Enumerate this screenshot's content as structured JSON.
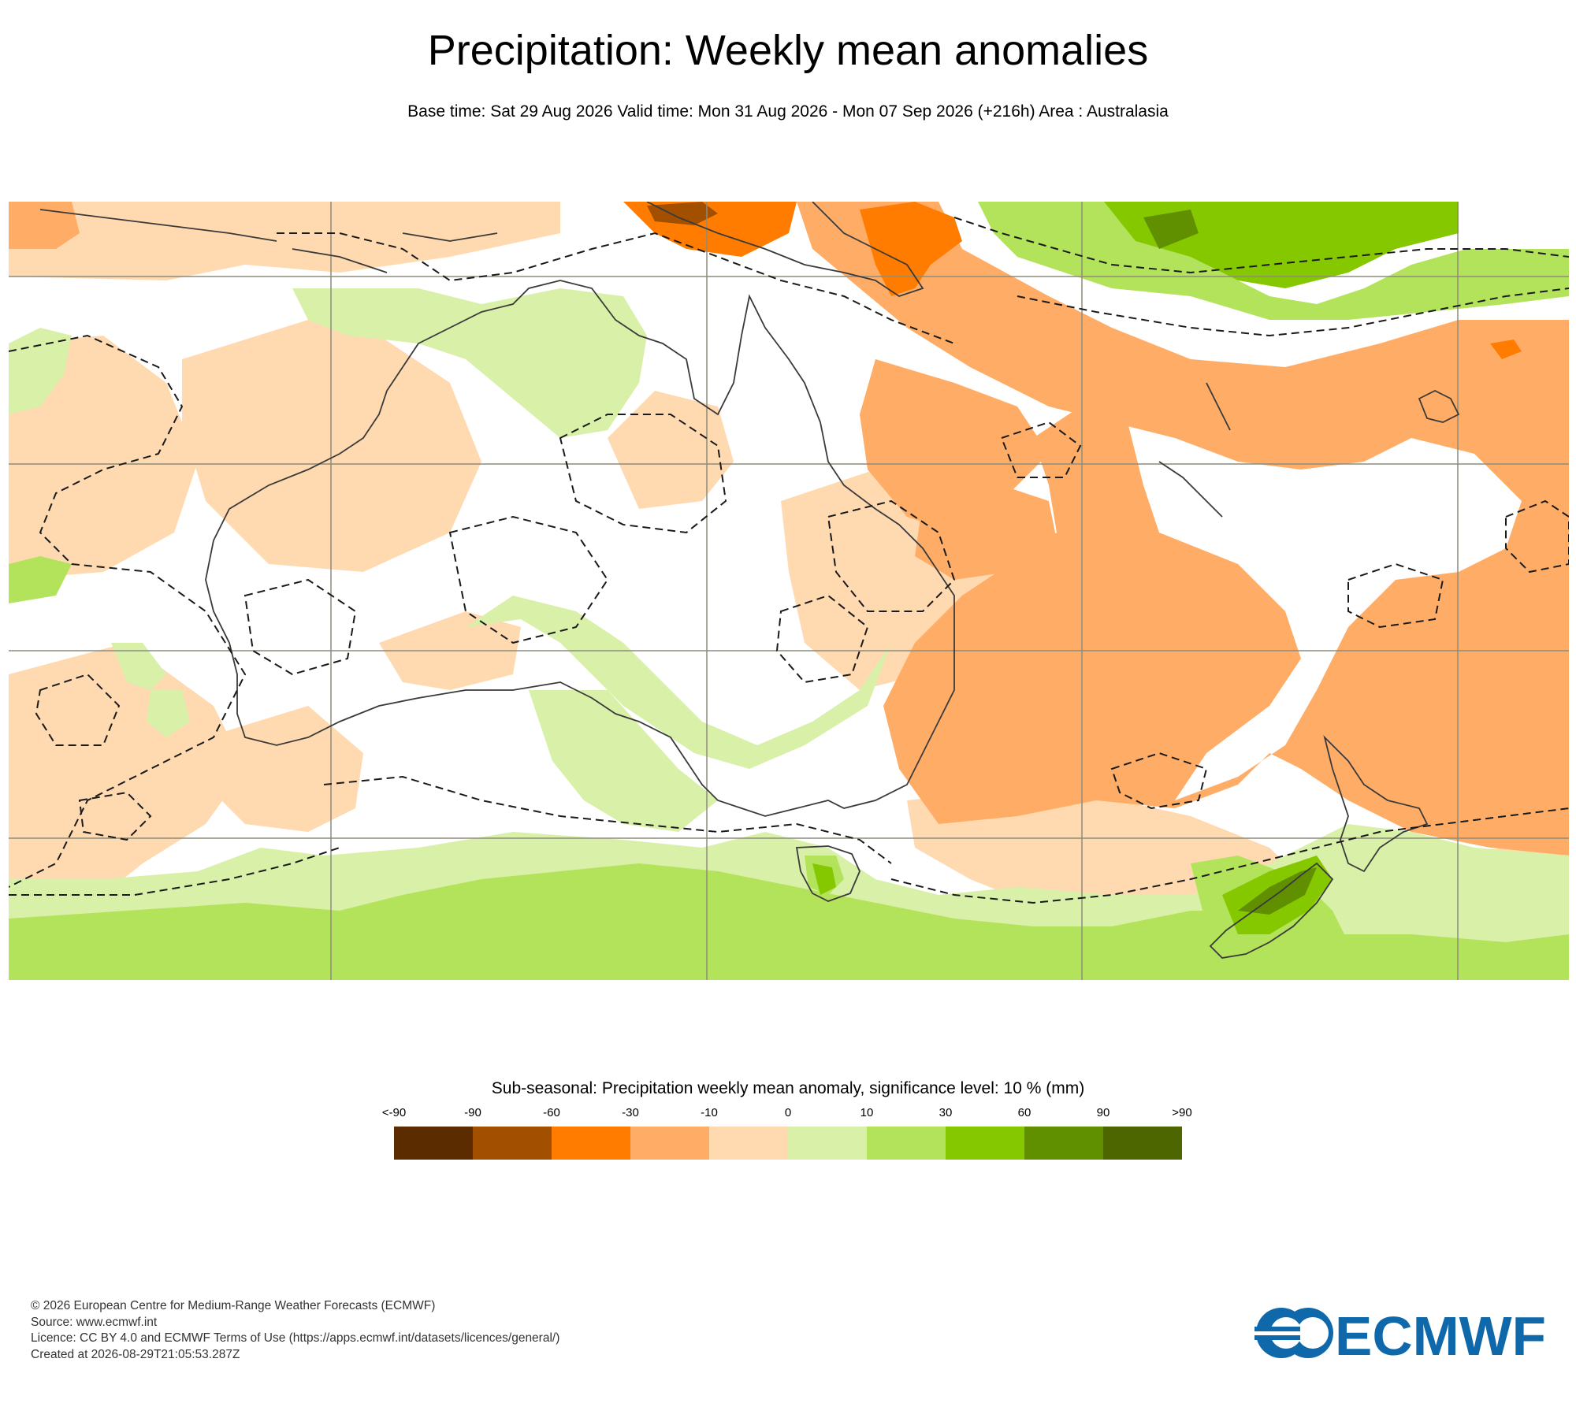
{
  "header": {
    "title": "Precipitation: Weekly mean anomalies",
    "subtitle": "Base time: Sat 29 Aug 2026 Valid time: Mon 31 Aug 2026 - Mon 07 Sep 2026 (+216h) Area : Australasia"
  },
  "map": {
    "region": "Australasia",
    "colors": {
      "neutral": "#ffffff",
      "coast": "#3a3a3a",
      "grid": "#8c8c7c",
      "contour": "#1a1a1a"
    }
  },
  "legend": {
    "title": "Sub-seasonal: Precipitation weekly mean anomaly, significance level: 10 % (mm)",
    "ticks": [
      "<-90",
      "-90",
      "-60",
      "-30",
      "-10",
      "0",
      "10",
      "30",
      "60",
      "90",
      ">90"
    ],
    "colors": [
      "#5a2c00",
      "#a34f00",
      "#ff7c00",
      "#ffad66",
      "#ffd9b0",
      "#d9f0a8",
      "#b2e35a",
      "#85c800",
      "#609000",
      "#4d6600"
    ]
  },
  "footer": {
    "lines": [
      "© 2026 European Centre for Medium-Range Weather Forecasts (ECMWF)",
      "Source: www.ecmwf.int",
      "Licence: CC BY 4.0 and ECMWF Terms of Use (https://apps.ecmwf.int/datasets/licences/general/)",
      "Created at 2026-08-29T21:05:53.287Z"
    ]
  },
  "logo": {
    "text": "ECMWF",
    "color": "#0e68aa"
  }
}
